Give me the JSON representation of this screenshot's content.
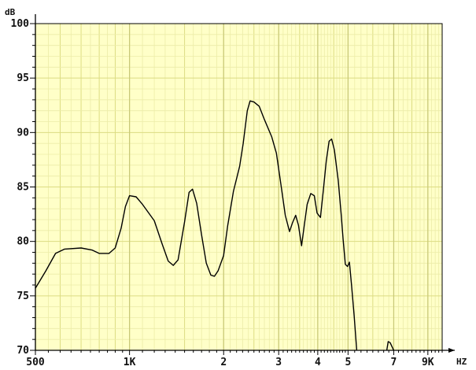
{
  "chart_data": {
    "type": "line",
    "ylabel": "dB",
    "xunit": "HZ",
    "xscale": "log",
    "xlim": [
      500,
      10000
    ],
    "ylim": [
      70,
      100
    ],
    "grid": true,
    "background_color": "#ffffc8",
    "grid_major_color": "#dcdc82",
    "grid_minor_color": "#ececa8",
    "line_color": "#000000",
    "y_ticks": [
      {
        "value": 100,
        "label": "100"
      },
      {
        "value": 95,
        "label": "95"
      },
      {
        "value": 90,
        "label": "90"
      },
      {
        "value": 85,
        "label": "85"
      },
      {
        "value": 80,
        "label": "80"
      },
      {
        "value": 75,
        "label": "75"
      },
      {
        "value": 70,
        "label": "70"
      }
    ],
    "x_ticks": [
      {
        "value": 500,
        "label": "500"
      },
      {
        "value": 1000,
        "label": "1K"
      },
      {
        "value": 2000,
        "label": "2"
      },
      {
        "value": 3000,
        "label": "3"
      },
      {
        "value": 4000,
        "label": "4"
      },
      {
        "value": 5000,
        "label": "5"
      },
      {
        "value": 7000,
        "label": "7"
      },
      {
        "value": 9000,
        "label": "9K"
      }
    ],
    "series": [
      {
        "segments": [
          [
            [
              500,
              75.7
            ],
            [
              540,
              77.3
            ],
            [
              580,
              78.9
            ],
            [
              620,
              79.3
            ],
            [
              700,
              79.4
            ],
            [
              760,
              79.2
            ],
            [
              800,
              78.9
            ],
            [
              860,
              78.9
            ],
            [
              900,
              79.4
            ],
            [
              940,
              81.2
            ],
            [
              970,
              83.2
            ],
            [
              1000,
              84.2
            ],
            [
              1050,
              84.1
            ],
            [
              1100,
              83.4
            ],
            [
              1200,
              81.9
            ],
            [
              1270,
              79.8
            ],
            [
              1330,
              78.2
            ],
            [
              1380,
              77.8
            ],
            [
              1430,
              78.3
            ],
            [
              1500,
              81.8
            ],
            [
              1550,
              84.5
            ],
            [
              1590,
              84.8
            ],
            [
              1640,
              83.5
            ],
            [
              1700,
              80.6
            ],
            [
              1760,
              78.0
            ],
            [
              1820,
              76.9
            ],
            [
              1870,
              76.8
            ],
            [
              1920,
              77.3
            ],
            [
              2000,
              78.7
            ],
            [
              2060,
              81.4
            ],
            [
              2150,
              84.6
            ],
            [
              2250,
              86.9
            ],
            [
              2310,
              89.0
            ],
            [
              2380,
              92.0
            ],
            [
              2430,
              92.9
            ],
            [
              2500,
              92.8
            ],
            [
              2600,
              92.4
            ],
            [
              2700,
              91.2
            ],
            [
              2850,
              89.6
            ],
            [
              2950,
              88.1
            ],
            [
              3050,
              85.2
            ],
            [
              3150,
              82.4
            ],
            [
              3250,
              80.9
            ],
            [
              3320,
              81.7
            ],
            [
              3400,
              82.4
            ],
            [
              3470,
              81.5
            ],
            [
              3550,
              79.6
            ],
            [
              3620,
              81.4
            ],
            [
              3700,
              83.4
            ],
            [
              3800,
              84.4
            ],
            [
              3900,
              84.2
            ],
            [
              3980,
              82.6
            ],
            [
              4080,
              82.2
            ],
            [
              4170,
              84.8
            ],
            [
              4260,
              87.4
            ],
            [
              4350,
              89.2
            ],
            [
              4430,
              89.4
            ],
            [
              4520,
              88.4
            ],
            [
              4650,
              85.6
            ],
            [
              4750,
              82.6
            ],
            [
              4820,
              80.2
            ],
            [
              4900,
              77.9
            ],
            [
              4980,
              77.7
            ],
            [
              5050,
              78.1
            ],
            [
              5130,
              76.0
            ],
            [
              5230,
              73.2
            ],
            [
              5330,
              70.0
            ]
          ],
          [
            [
              6650,
              70.0
            ],
            [
              6720,
              70.8
            ],
            [
              6820,
              70.7
            ],
            [
              6920,
              70.3
            ],
            [
              7000,
              70.0
            ]
          ]
        ]
      }
    ]
  }
}
